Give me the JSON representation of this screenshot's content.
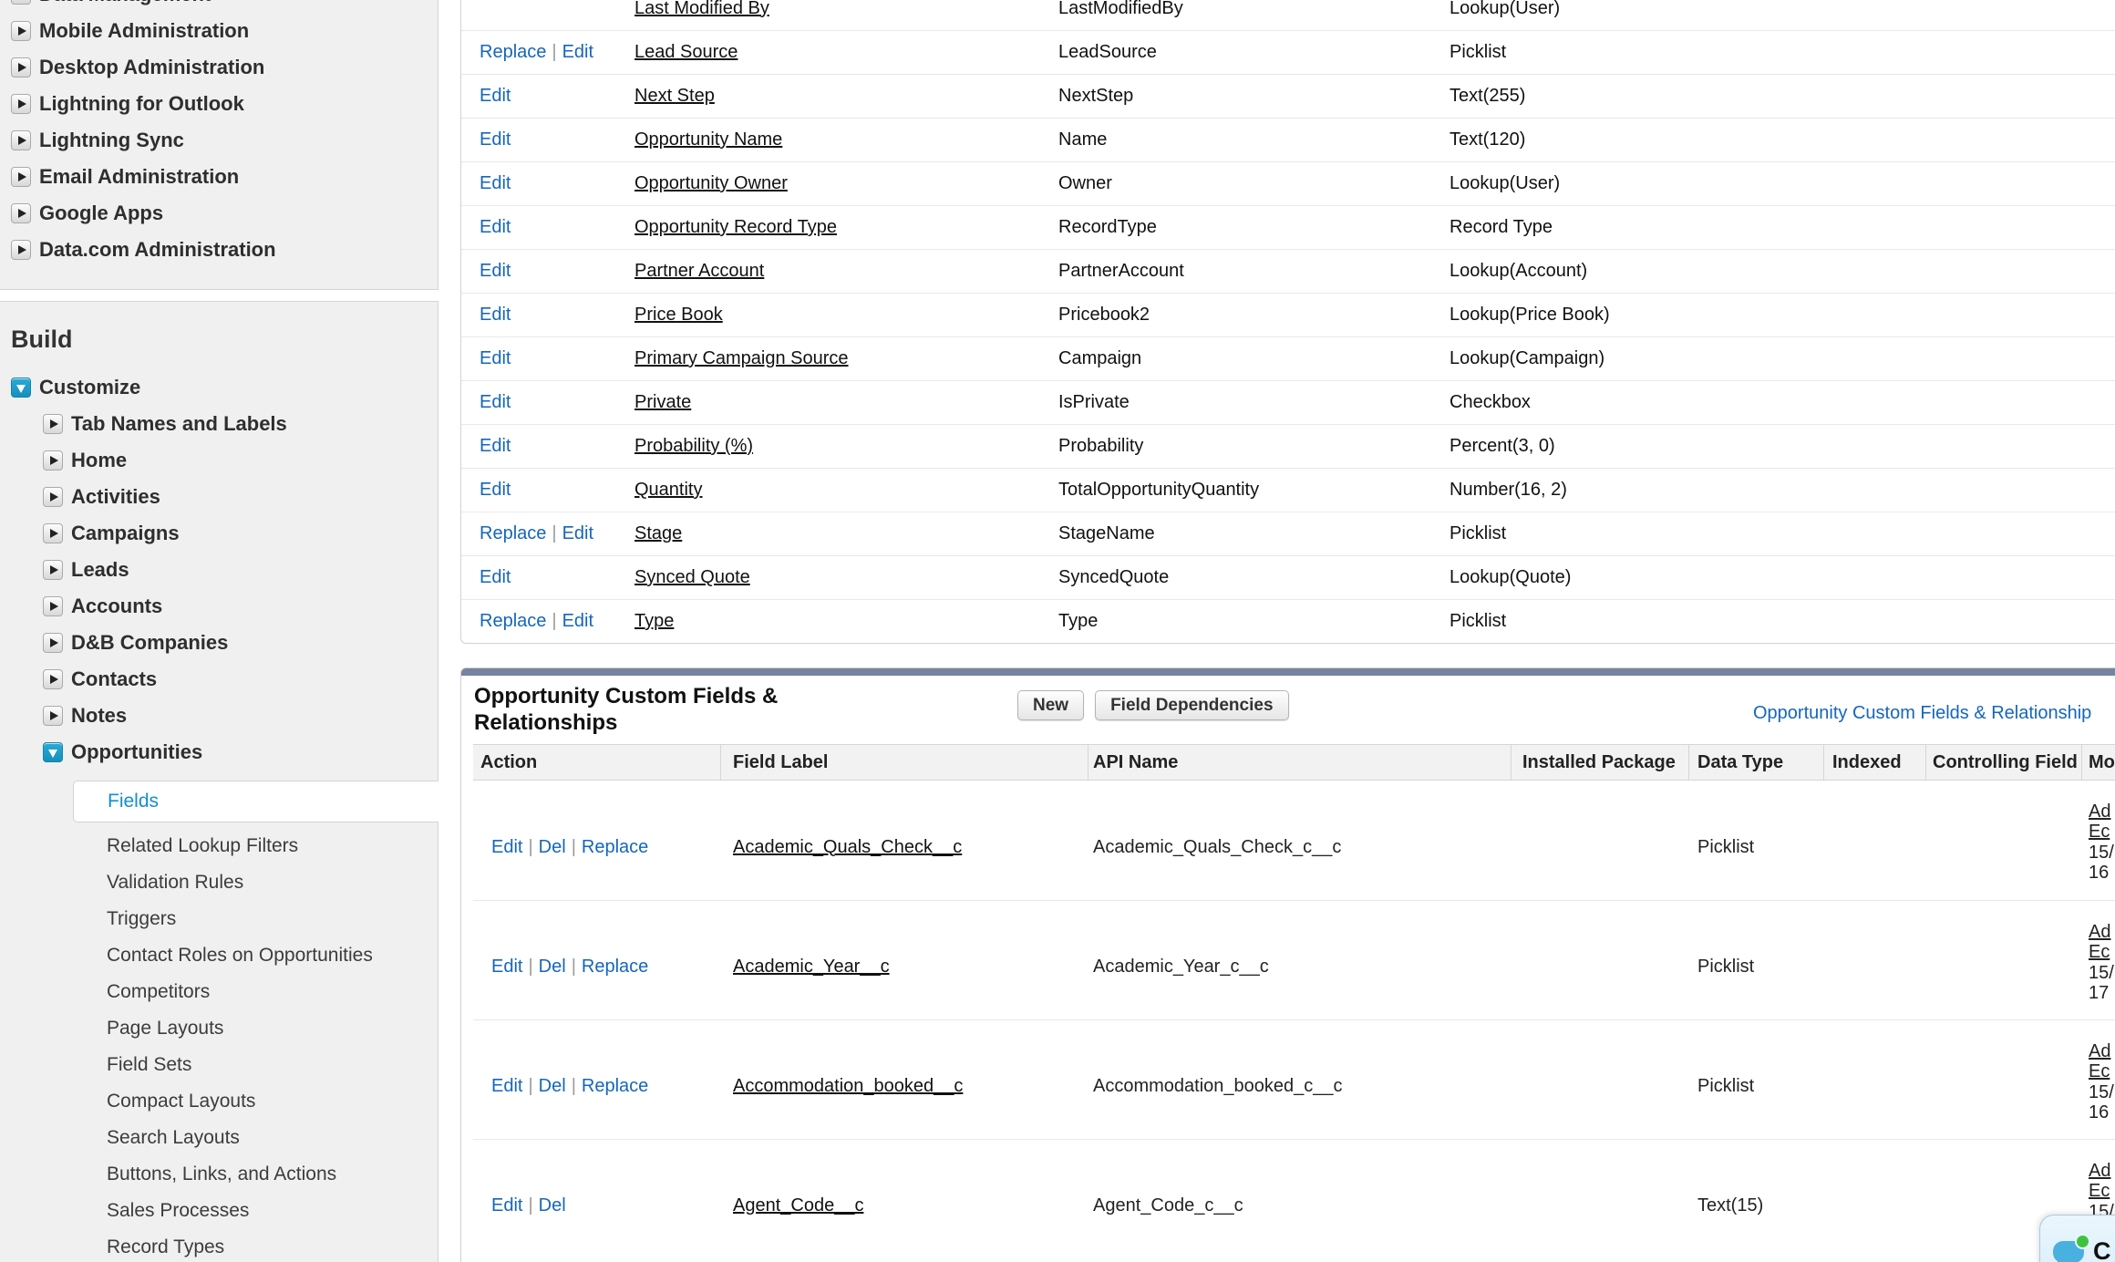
{
  "colors": {
    "link_blue": "#1566bb",
    "selected_item_blue": "#128fd1",
    "expanded_toggle_teal": "#1a9fc9",
    "section_bar_slate": "#75849f",
    "sidebar_gray": "#f0f0f0",
    "chat_bubble_blue": "#49b1e0",
    "chat_dot_green": "#3cc53c"
  },
  "ui": {
    "sep": "|"
  },
  "sidebar": {
    "top_section_items": [
      "Data Management",
      "Mobile Administration",
      "Desktop Administration",
      "Lightning for Outlook",
      "Lightning Sync",
      "Email Administration",
      "Google Apps",
      "Data.com Administration"
    ],
    "build_title": "Build",
    "customize_label": "Customize",
    "customize_items": [
      "Tab Names and Labels",
      "Home",
      "Activities",
      "Campaigns",
      "Leads",
      "Accounts",
      "D&B Companies",
      "Contacts",
      "Notes"
    ],
    "opportunities_label": "Opportunities",
    "selected_item": "Fields",
    "opportunities_items": [
      "Fields",
      "Related Lookup Filters",
      "Validation Rules",
      "Triggers",
      "Contact Roles on Opportunities",
      "Competitors",
      "Page Layouts",
      "Field Sets",
      "Compact Layouts",
      "Search Layouts",
      "Buttons, Links, and Actions",
      "Sales Processes",
      "Record Types"
    ]
  },
  "standard_fields": {
    "rows": [
      {
        "actions": [],
        "label": "Last Modified By",
        "api": "LastModifiedBy",
        "type": "Lookup(User)"
      },
      {
        "actions": [
          "Replace",
          "Edit"
        ],
        "label": "Lead Source",
        "api": "LeadSource",
        "type": "Picklist"
      },
      {
        "actions": [
          "Edit"
        ],
        "label": "Next Step",
        "api": "NextStep",
        "type": "Text(255)"
      },
      {
        "actions": [
          "Edit"
        ],
        "label": "Opportunity Name",
        "api": "Name",
        "type": "Text(120)"
      },
      {
        "actions": [
          "Edit"
        ],
        "label": "Opportunity Owner",
        "api": "Owner",
        "type": "Lookup(User)"
      },
      {
        "actions": [
          "Edit"
        ],
        "label": "Opportunity Record Type",
        "api": "RecordType",
        "type": "Record Type"
      },
      {
        "actions": [
          "Edit"
        ],
        "label": "Partner Account",
        "api": "PartnerAccount",
        "type": "Lookup(Account)"
      },
      {
        "actions": [
          "Edit"
        ],
        "label": "Price Book",
        "api": "Pricebook2",
        "type": "Lookup(Price Book)"
      },
      {
        "actions": [
          "Edit"
        ],
        "label": "Primary Campaign Source",
        "api": "Campaign",
        "type": "Lookup(Campaign)"
      },
      {
        "actions": [
          "Edit"
        ],
        "label": "Private",
        "api": "IsPrivate",
        "type": "Checkbox"
      },
      {
        "actions": [
          "Edit"
        ],
        "label": "Probability (%)",
        "api": "Probability",
        "type": "Percent(3, 0)"
      },
      {
        "actions": [
          "Edit"
        ],
        "label": "Quantity",
        "api": "TotalOpportunityQuantity",
        "type": "Number(16, 2)"
      },
      {
        "actions": [
          "Replace",
          "Edit"
        ],
        "label": "Stage",
        "api": "StageName",
        "type": "Picklist"
      },
      {
        "actions": [
          "Edit"
        ],
        "label": "Synced Quote",
        "api": "SyncedQuote",
        "type": "Lookup(Quote)"
      },
      {
        "actions": [
          "Replace",
          "Edit"
        ],
        "label": "Type",
        "api": "Type",
        "type": "Picklist"
      }
    ]
  },
  "custom_fields": {
    "title_line1": "Opportunity Custom Fields &",
    "title_line2": "Relationships",
    "new_button": "New",
    "field_dependencies_button": "Field Dependencies",
    "help_link": "Opportunity Custom Fields & Relationship",
    "columns": [
      "Action",
      "Field Label",
      "API Name",
      "Installed Package",
      "Data Type",
      "Indexed",
      "Controlling Field",
      "Modified By"
    ],
    "rows": [
      {
        "actions": [
          "Edit",
          "Del",
          "Replace"
        ],
        "label": "Academic_Quals_Check__c",
        "api": "Academic_Quals_Check_c__c",
        "type": "Picklist",
        "modified_lines": [
          "Ad",
          "Ec",
          "15/",
          "16"
        ]
      },
      {
        "actions": [
          "Edit",
          "Del",
          "Replace"
        ],
        "label": "Academic_Year__c",
        "api": "Academic_Year_c__c",
        "type": "Picklist",
        "modified_lines": [
          "Ad",
          "Ec",
          "15/",
          "17"
        ]
      },
      {
        "actions": [
          "Edit",
          "Del",
          "Replace"
        ],
        "label": "Accommodation_booked__c",
        "api": "Accommodation_booked_c__c",
        "type": "Picklist",
        "modified_lines": [
          "Ad",
          "Ec",
          "15/",
          "16"
        ]
      },
      {
        "actions": [
          "Edit",
          "Del"
        ],
        "label": "Agent_Code__c",
        "api": "Agent_Code_c__c",
        "type": "Text(15)",
        "modified_lines": [
          "Ad",
          "Ec",
          "15/"
        ]
      }
    ]
  },
  "chat_widget": {
    "label": "C"
  }
}
